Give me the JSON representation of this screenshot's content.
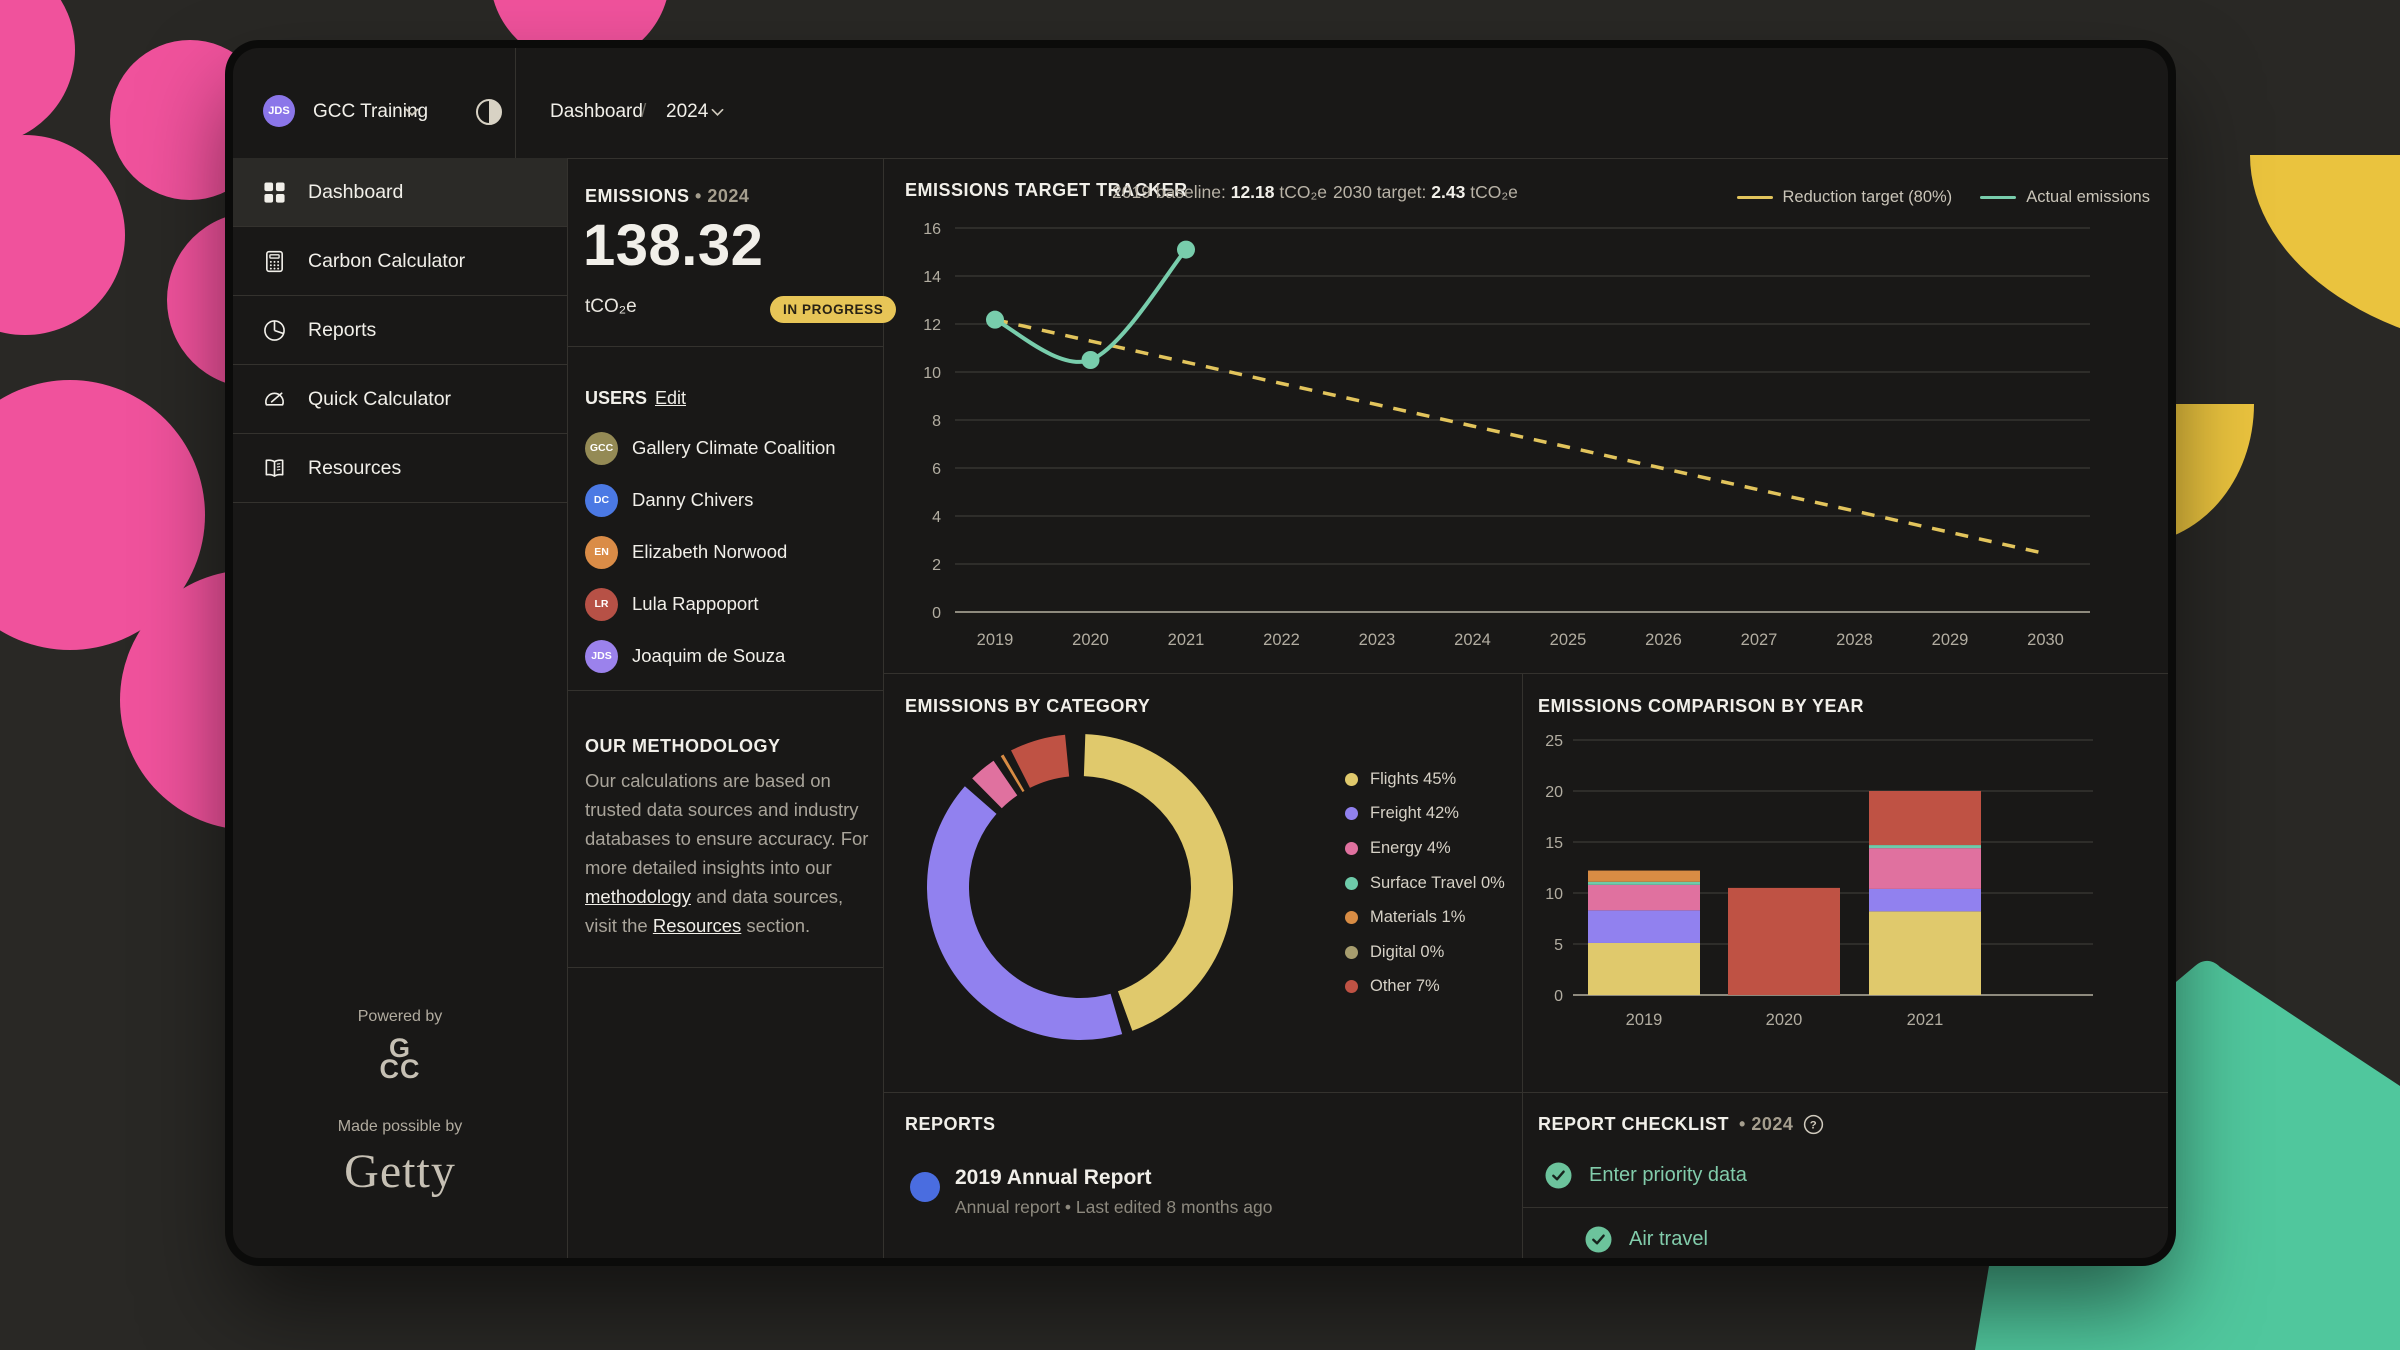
{
  "app": {
    "background": "#292825",
    "window_bg": "#191817",
    "border_color": "#34322e",
    "text_primary": "#f1efe9",
    "text_muted": "#a9a49a"
  },
  "decor": {
    "pink": "#f0529c",
    "yellow": "#eac33e",
    "teal": "#50c79d"
  },
  "topbar": {
    "account": {
      "initials": "JDS",
      "name": "GCC Training",
      "color": "#8b76e9"
    },
    "breadcrumb": {
      "section": "Dashboard",
      "separator": "/",
      "year": "2024"
    }
  },
  "sidebar": {
    "items": [
      {
        "label": "Dashboard",
        "active": true
      },
      {
        "label": "Carbon Calculator",
        "active": false
      },
      {
        "label": "Reports",
        "active": false
      },
      {
        "label": "Quick Calculator",
        "active": false
      },
      {
        "label": "Resources",
        "active": false
      }
    ],
    "footer": {
      "powered_by": "Powered by",
      "logo_top": "G",
      "logo_bottom": "CC",
      "made_possible_by": "Made possible by",
      "brand": "Getty"
    }
  },
  "emissions_summary": {
    "title": "EMISSIONS",
    "year": "• 2024",
    "value": "138.32",
    "unit": "tCO₂e",
    "status": "IN PROGRESS",
    "status_bg": "#e7c557"
  },
  "users": {
    "title": "USERS",
    "edit_label": "Edit",
    "list": [
      {
        "initials": "GCC",
        "name": "Gallery Climate Coalition",
        "color": "#948a55"
      },
      {
        "initials": "DC",
        "name": "Danny Chivers",
        "color": "#4b79e4"
      },
      {
        "initials": "EN",
        "name": "Elizabeth Norwood",
        "color": "#da8c47"
      },
      {
        "initials": "LR",
        "name": "Lula Rappoport",
        "color": "#b75146"
      },
      {
        "initials": "JDS",
        "name": "Joaquim de Souza",
        "color": "#9b82ec"
      }
    ]
  },
  "methodology": {
    "title": "OUR METHODOLOGY",
    "p1": "Our calculations are based on trusted data sources and industry databases to ensure accuracy. For more detailed insights into our ",
    "link1": "methodology",
    "p2": " and data sources, visit the ",
    "link2": "Resources",
    "p3": " section."
  },
  "tracker": {
    "title": "EMISSIONS TARGET TRACKER",
    "baseline_label": "2019 baseline: ",
    "baseline_value": "12.18",
    "baseline_unit": " tCO₂e",
    "target_label": "2030 target: ",
    "target_value": "2.43",
    "target_unit": " tCO₂e",
    "legend": [
      {
        "label": "Reduction target (80%)",
        "color": "#e2c45c"
      },
      {
        "label": "Actual emissions",
        "color": "#78cdac"
      }
    ]
  },
  "category_panel": {
    "title": "EMISSIONS BY CATEGORY"
  },
  "comparison_panel": {
    "title": "EMISSIONS COMPARISON BY YEAR"
  },
  "reports": {
    "title": "REPORTS",
    "items": [
      {
        "title": "2019 Annual Report",
        "subtitle": "Annual report • Last edited 8 months ago",
        "dot_color": "#4a6de0"
      }
    ]
  },
  "checklist": {
    "title": "REPORT CHECKLIST",
    "year": "• 2024",
    "check_color": "#6cc39c",
    "text_color": "#82ccab",
    "items": [
      {
        "label": "Enter priority data",
        "checked": true,
        "indent": false
      },
      {
        "label": "Air travel",
        "checked": true,
        "indent": true
      }
    ]
  },
  "chart_data": [
    {
      "id": "target_tracker",
      "type": "line",
      "title": "EMISSIONS TARGET TRACKER",
      "x": [
        2019,
        2020,
        2021,
        2022,
        2023,
        2024,
        2025,
        2026,
        2027,
        2028,
        2029,
        2030
      ],
      "ylim": [
        0,
        16
      ],
      "yticks": [
        0,
        2,
        4,
        6,
        8,
        10,
        12,
        14,
        16
      ],
      "grid": true,
      "legend_position": "top-right",
      "series": [
        {
          "name": "Reduction target (80%)",
          "color": "#e2c45c",
          "style": "dashed",
          "values": [
            12.18,
            11.29,
            10.41,
            9.52,
            8.64,
            7.75,
            6.87,
            5.98,
            5.09,
            4.21,
            3.32,
            2.43
          ]
        },
        {
          "name": "Actual emissions",
          "color": "#78cdac",
          "style": "solid",
          "markers": true,
          "values": [
            12.18,
            10.5,
            15.1
          ]
        }
      ]
    },
    {
      "id": "emissions_by_category",
      "type": "donut",
      "title": "EMISSIONS BY CATEGORY",
      "legend_position": "right",
      "slices": [
        {
          "label": "Flights",
          "pct": 45,
          "color": "#e0c96c"
        },
        {
          "label": "Freight",
          "pct": 42,
          "color": "#9181ef"
        },
        {
          "label": "Energy",
          "pct": 4,
          "color": "#e0719f"
        },
        {
          "label": "Surface Travel",
          "pct": 0,
          "color": "#6ecbaa"
        },
        {
          "label": "Materials",
          "pct": 1,
          "color": "#d88c44"
        },
        {
          "label": "Digital",
          "pct": 0,
          "color": "#a79d6e"
        },
        {
          "label": "Other",
          "pct": 7,
          "color": "#bf5244"
        }
      ]
    },
    {
      "id": "emissions_comparison",
      "type": "stacked_bar",
      "title": "EMISSIONS COMPARISON BY YEAR",
      "categories": [
        "2019",
        "2020",
        "2021"
      ],
      "ylim": [
        0,
        25
      ],
      "yticks": [
        0,
        5,
        10,
        15,
        20,
        25
      ],
      "grid": true,
      "series": [
        {
          "name": "Flights",
          "color": "#e0c96c",
          "values": [
            5.1,
            0,
            8.2
          ]
        },
        {
          "name": "Freight",
          "color": "#9181ef",
          "values": [
            3.2,
            0,
            2.2
          ]
        },
        {
          "name": "Energy",
          "color": "#e0719f",
          "values": [
            2.5,
            0,
            4.0
          ]
        },
        {
          "name": "Surface Travel",
          "color": "#6ecbaa",
          "values": [
            0.3,
            0,
            0.3
          ]
        },
        {
          "name": "Materials",
          "color": "#d88c44",
          "values": [
            1.1,
            0,
            0
          ]
        },
        {
          "name": "Other",
          "color": "#bf5244",
          "values": [
            0,
            10.5,
            5.3
          ]
        }
      ]
    }
  ]
}
